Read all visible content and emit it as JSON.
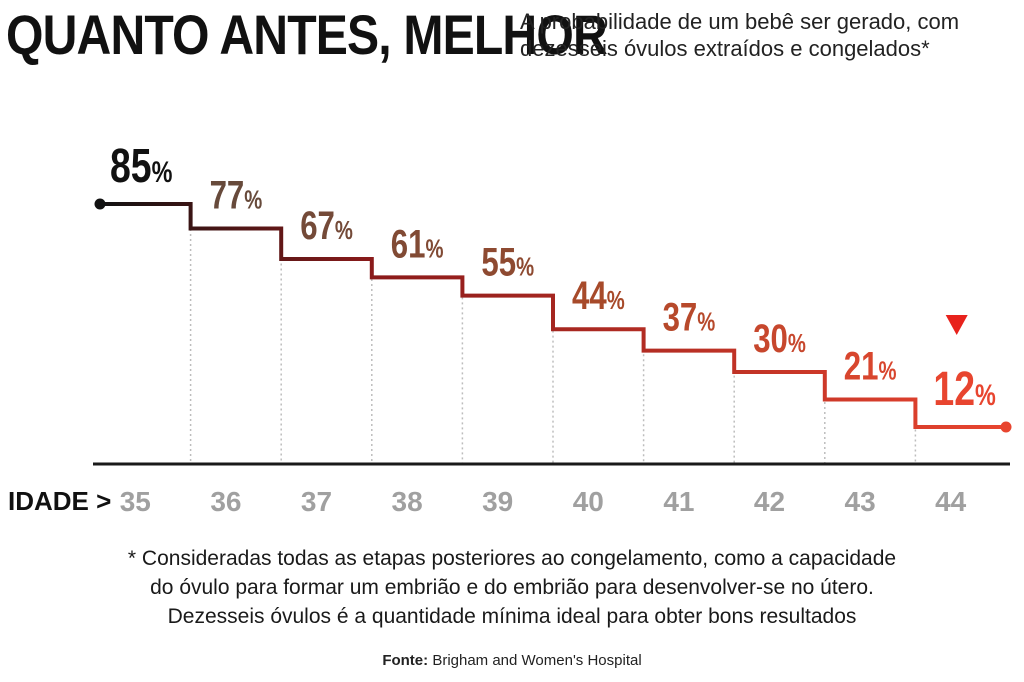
{
  "header": {
    "title": "QUANTO ANTES, MELHOR",
    "subtitle": "A probabilidade de um bebê ser gerado, com dezesseis óvulos extraídos e congelados*"
  },
  "chart_data": {
    "type": "line",
    "step": true,
    "title": "QUANTO ANTES, MELHOR",
    "subtitle": "A probabilidade de um bebê ser gerado, com dezesseis óvulos extraídos e congelados*",
    "xlabel": "IDADE >",
    "ylabel": "",
    "categories": [
      "35",
      "36",
      "37",
      "38",
      "39",
      "40",
      "41",
      "42",
      "43",
      "44"
    ],
    "series": [
      {
        "name": "Probabilidade",
        "values": [
          85,
          77,
          67,
          61,
          55,
          44,
          37,
          30,
          21,
          12
        ]
      }
    ],
    "labels": [
      "85%",
      "77%",
      "67%",
      "61%",
      "55%",
      "44%",
      "37%",
      "30%",
      "21%",
      "12%"
    ],
    "ylim": [
      0,
      100
    ],
    "grid": true,
    "highlight": "44",
    "colors": {
      "line_start": "#111111",
      "line_mid": "#8a1a1a",
      "line_end": "#e8452f",
      "marker": "#e8221c",
      "axis": "#1a1a1a",
      "tick": "#a0a0a0",
      "gridline": "#bdbdbd"
    }
  },
  "footnote": {
    "lines": [
      "* Consideradas todas as etapas posteriores ao congelamento, como a capacidade",
      "do óvulo para formar um embrião e do embrião para desenvolver-se no útero.",
      "Dezesseis óvulos é a quantidade mínima ideal para obter bons resultados"
    ]
  },
  "source": {
    "label": "Fonte:",
    "text": "Brigham and Women's Hospital"
  }
}
